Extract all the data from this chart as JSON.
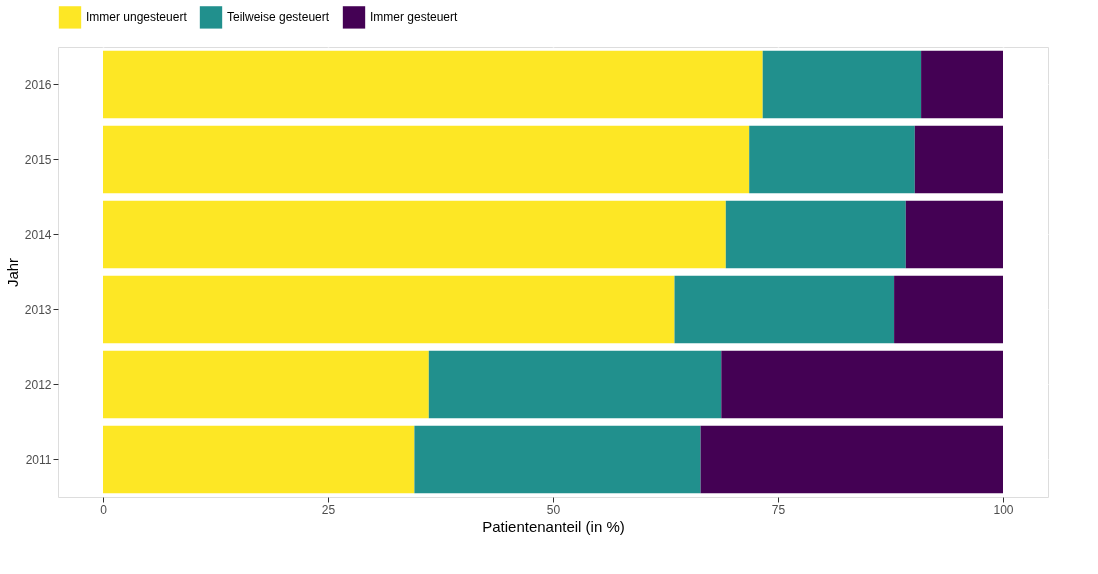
{
  "chart_data": {
    "type": "bar",
    "orientation": "horizontal",
    "stacked": true,
    "xlabel": "Patientenanteil (in %)",
    "ylabel": "Jahr",
    "categories": [
      "2016",
      "2015",
      "2014",
      "2013",
      "2012",
      "2011"
    ],
    "series": [
      {
        "name": "Immer ungesteuert",
        "color": "#fde725",
        "values": [
          73.3,
          71.8,
          69.2,
          63.5,
          36.2,
          34.6
        ]
      },
      {
        "name": "Teilweise gesteuert",
        "color": "#21908d",
        "values": [
          17.6,
          18.4,
          20.0,
          24.4,
          32.5,
          31.8
        ]
      },
      {
        "name": "Immer gesteuert",
        "color": "#440154",
        "values": [
          9.1,
          9.8,
          10.8,
          12.1,
          31.3,
          33.6
        ]
      }
    ],
    "xlim": [
      -5,
      105
    ],
    "xticks": [
      0,
      25,
      50,
      75,
      100
    ],
    "grid": true,
    "legend": "top"
  }
}
